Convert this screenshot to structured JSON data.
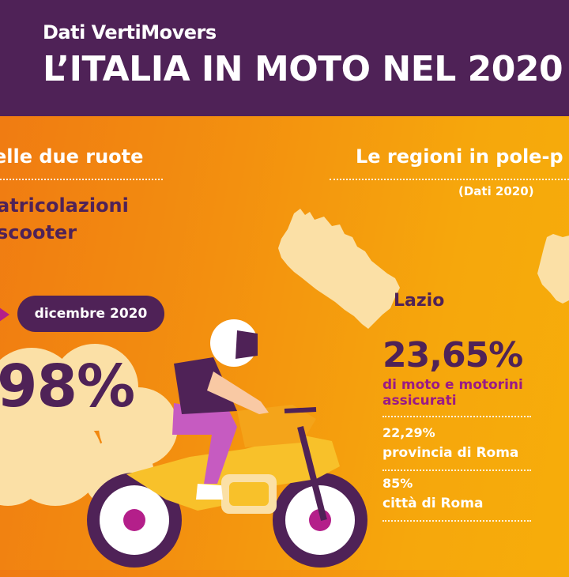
{
  "header": {
    "subtitle": "Dati VertiMovers",
    "title": "L’ITALIA IN MOTO NEL 2020"
  },
  "left_section": {
    "heading": "elle due ruote",
    "label_line1": "atricolazioni",
    "label_line2": "scooter",
    "period_badge": "dicembre 2020",
    "big_value": "98%"
  },
  "right_section": {
    "heading": "Le regioni in pole-p",
    "note": "(Dati 2020)",
    "region": "Lazio",
    "main_value": "23,65%",
    "main_desc_line1": "di moto e motorini",
    "main_desc_line2": "assicurati",
    "stats": [
      {
        "value": "22,29%",
        "label": "provincia di Roma"
      },
      {
        "value": "85%",
        "label": "città di Roma"
      }
    ]
  },
  "colors": {
    "purple": "#4f2257",
    "magenta": "#9a1a86",
    "map_fill": "#fbe0a6",
    "motorcycle": "#f8c12a"
  },
  "icons": [
    "italy-map-illustration",
    "motorcyclist-illustration",
    "smoke-cloud-illustration"
  ]
}
